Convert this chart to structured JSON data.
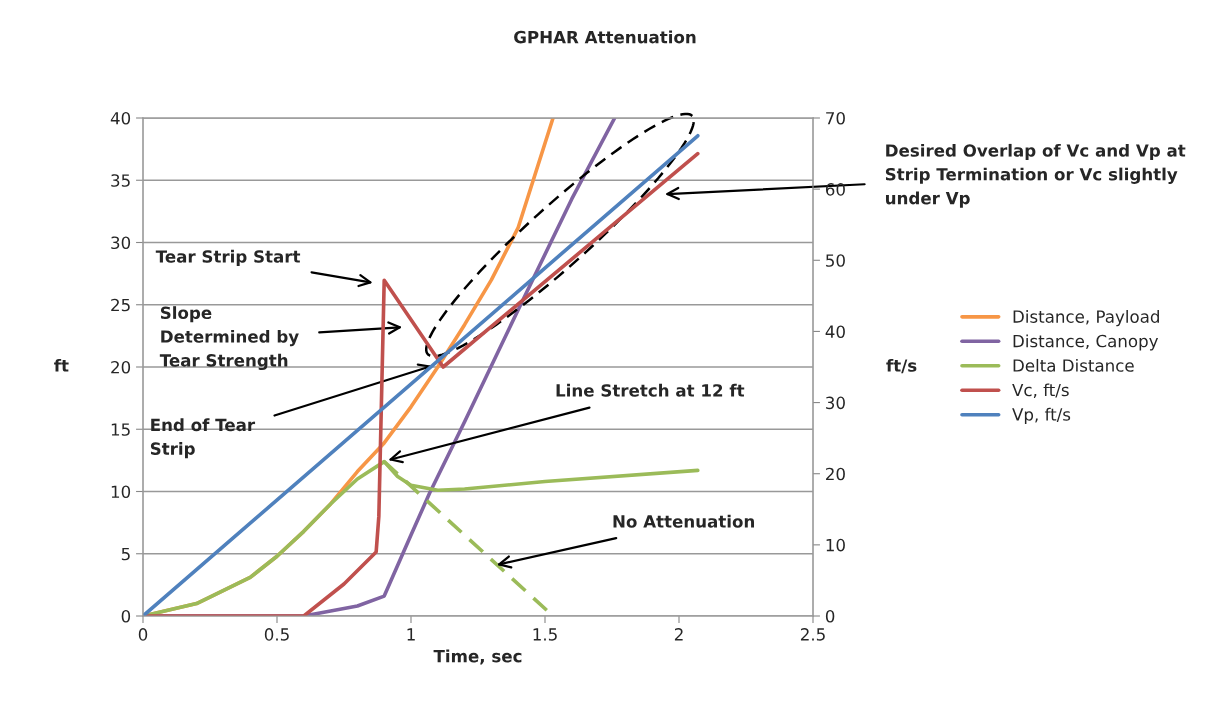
{
  "chart_data": {
    "type": "line",
    "title": "GPHAR Attenuation",
    "xlabel": "Time, sec",
    "ylabel": "ft",
    "y2label": "ft/s",
    "xlim": [
      0,
      2.5
    ],
    "xticks": [
      0,
      0.5,
      1,
      1.5,
      2,
      2.5
    ],
    "ylim": [
      0,
      40
    ],
    "yticks": [
      0,
      5,
      10,
      15,
      20,
      25,
      30,
      35,
      40
    ],
    "y2lim": [
      0,
      70
    ],
    "y2ticks": [
      0,
      10,
      20,
      30,
      40,
      50,
      60,
      70
    ],
    "grid": "y",
    "legend": "right",
    "marker": "none",
    "line_style": "solid",
    "series": [
      {
        "name": "Distance, Payload",
        "color": "#f79646",
        "x": [
          0,
          0.2,
          0.4,
          0.5,
          0.6,
          0.7,
          0.8,
          0.9,
          1.0,
          1.1,
          1.2,
          1.3,
          1.4,
          1.53
        ],
        "values": [
          0,
          1,
          3.1,
          4.8,
          6.8,
          9,
          11.6,
          13.9,
          16.8,
          20,
          23.4,
          27,
          31.2,
          40
        ]
      },
      {
        "name": "Distance, Canopy",
        "color": "#8064a2",
        "x": [
          0,
          0.6,
          0.7,
          0.8,
          0.9,
          1.0,
          1.07,
          1.2,
          1.4,
          1.6,
          1.76
        ],
        "values": [
          0,
          0,
          0.4,
          0.8,
          1.6,
          6.5,
          9.9,
          15.6,
          24.6,
          33.5,
          40
        ]
      },
      {
        "name": "Delta Distance",
        "color": "#9bbb59",
        "x": [
          0,
          0.2,
          0.4,
          0.5,
          0.6,
          0.7,
          0.8,
          0.9,
          0.95,
          1.0,
          1.1,
          1.2,
          1.5,
          2.07
        ],
        "values": [
          0,
          1,
          3.1,
          4.8,
          6.8,
          9,
          11,
          12.4,
          11.2,
          10.5,
          10.1,
          10.2,
          10.8,
          11.7
        ]
      },
      {
        "name": "Vc, ft/s",
        "color": "#c0504d",
        "axis": "y2",
        "x": [
          0,
          0.6,
          0.75,
          0.87,
          0.88,
          0.9,
          1.12,
          2.07
        ],
        "values": [
          0,
          0,
          4.5,
          9,
          14,
          47.2,
          35,
          65
        ]
      },
      {
        "name": "Vp, ft/s",
        "color": "#4f81bd",
        "axis": "y2",
        "x": [
          0,
          2.07
        ],
        "values": [
          0,
          67.5
        ]
      },
      {
        "color": "#9bbb59",
        "line_style": "dashed",
        "x": [
          0.9,
          1.53
        ],
        "values": [
          12.4,
          0
        ]
      }
    ],
    "annotations": [
      "Tear Strip Start",
      "Slope\nDetermined by\nTear Strength",
      {
        "text": "End of Tear\nStrip",
        "x": 1.08,
        "y": 20.1
      },
      "Line Stretch at 12 ft",
      {
        "text": "No Attenuation",
        "x": 1.32,
        "y": 4.1
      },
      "Desired Overlap of Vc and Vp at\nStrip Termination or Vc slightly\nunder Vp"
    ]
  }
}
